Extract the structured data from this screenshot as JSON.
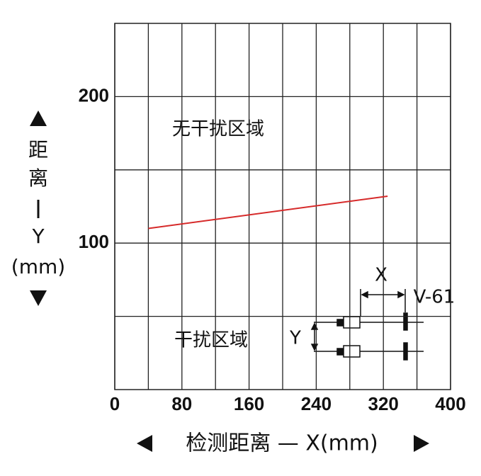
{
  "chart_data": {
    "type": "line",
    "ylabel_lines": [
      "距",
      "离",
      "Y",
      "(mm)"
    ],
    "xlabel": "检测距离 — X(mm)",
    "x": [
      40,
      325
    ],
    "series": [
      {
        "color": "#d62a2a",
        "values": [
          110,
          132
        ]
      }
    ],
    "xlim": [
      0,
      400
    ],
    "xticks": [
      0,
      80,
      160,
      240,
      320,
      400
    ],
    "xminor": [
      40,
      120,
      200,
      280,
      360
    ],
    "ylim": [
      0,
      250
    ],
    "yticks": [
      100,
      200
    ],
    "yminor": [
      50,
      150
    ],
    "grid": true,
    "annotations": [
      "无干扰区域",
      "干扰区域"
    ],
    "diagram_labels": [
      "X",
      "Y",
      "V-61"
    ]
  }
}
